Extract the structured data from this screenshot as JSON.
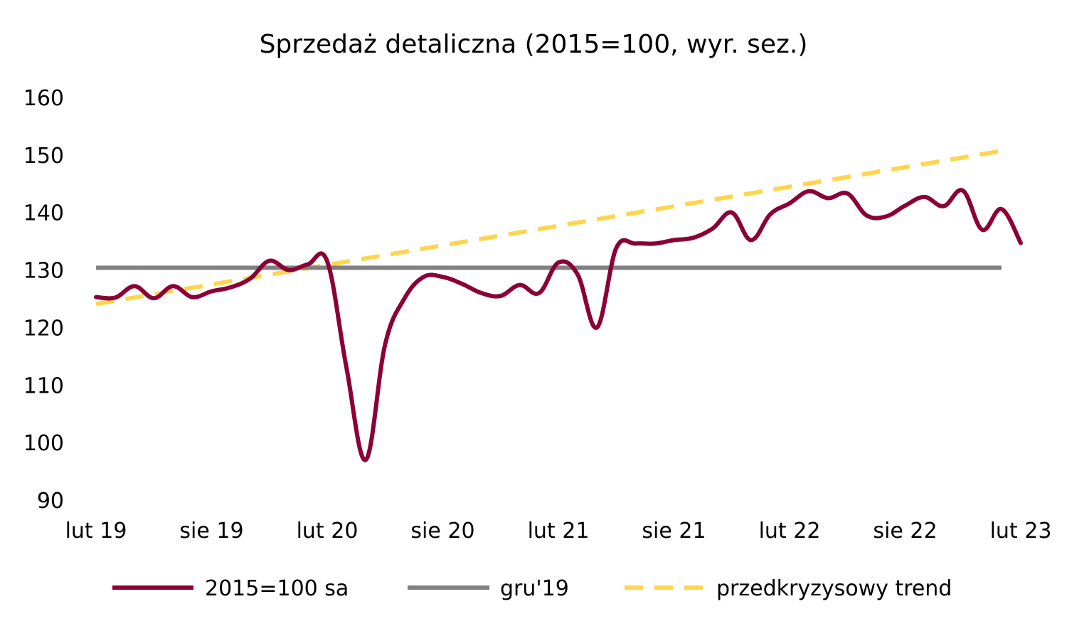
{
  "chart_data": {
    "type": "line",
    "title": "Sprzedaż detaliczna (2015=100, wyr. sez.)",
    "xlabel": "",
    "ylabel": "",
    "ylim": [
      90,
      160
    ],
    "yticks": [
      "90",
      "100",
      "110",
      "120",
      "130",
      "140",
      "150",
      "160"
    ],
    "x_tick_labels": [
      "lut 19",
      "sie 19",
      "lut 20",
      "sie 20",
      "lut 21",
      "sie 21",
      "lut 22",
      "sie 22",
      "lut 23"
    ],
    "x": [
      "2019-02",
      "2019-03",
      "2019-04",
      "2019-05",
      "2019-06",
      "2019-07",
      "2019-08",
      "2019-09",
      "2019-10",
      "2019-11",
      "2019-12",
      "2020-01",
      "2020-02",
      "2020-03",
      "2020-04",
      "2020-05",
      "2020-06",
      "2020-07",
      "2020-08",
      "2020-09",
      "2020-10",
      "2020-11",
      "2020-12",
      "2021-01",
      "2021-02",
      "2021-03",
      "2021-04",
      "2021-05",
      "2021-06",
      "2021-07",
      "2021-08",
      "2021-09",
      "2021-10",
      "2021-11",
      "2021-12",
      "2022-01",
      "2022-02",
      "2022-03",
      "2022-04",
      "2022-05",
      "2022-06",
      "2022-07",
      "2022-08",
      "2022-09",
      "2022-10",
      "2022-11",
      "2022-12",
      "2023-01",
      "2023-02"
    ],
    "series": [
      {
        "name": "2015=100 sa",
        "color": "#8b0036",
        "style": "solid",
        "values": [
          125.3,
          125.2,
          127.2,
          125.1,
          127.2,
          125.3,
          126.3,
          127.0,
          128.5,
          131.6,
          130.0,
          131.0,
          131.5,
          113.0,
          97.0,
          117.0,
          125.0,
          128.8,
          128.8,
          127.6,
          126.0,
          125.5,
          127.4,
          126.0,
          131.3,
          129.2,
          120.0,
          133.8,
          134.6,
          134.6,
          135.2,
          135.6,
          137.2,
          140.0,
          135.2,
          139.7,
          141.6,
          143.7,
          142.5,
          143.3,
          139.5,
          139.3,
          141.2,
          142.7,
          141.1,
          143.8,
          137.0,
          140.6,
          134.7
        ]
      },
      {
        "name": "gru'19",
        "color": "#808080",
        "style": "solid",
        "values": [
          130.4,
          130.4,
          130.4,
          130.4,
          130.4,
          130.4,
          130.4,
          130.4,
          130.4,
          130.4,
          130.4,
          130.4,
          130.4,
          130.4,
          130.4,
          130.4,
          130.4,
          130.4,
          130.4,
          130.4,
          130.4,
          130.4,
          130.4,
          130.4,
          130.4,
          130.4,
          130.4,
          130.4,
          130.4,
          130.4,
          130.4,
          130.4,
          130.4,
          130.4,
          130.4,
          130.4,
          130.4,
          130.4,
          130.4,
          130.4,
          130.4,
          130.4,
          130.4,
          130.4,
          130.4,
          130.4,
          130.4,
          130.4,
          130.4
        ]
      },
      {
        "name": "przedkryzysowy trend",
        "color": "#ffd54f",
        "style": "dashed",
        "values_start": 124.1,
        "values_end": 150.7
      }
    ],
    "grid": false,
    "legend_position": "bottom"
  }
}
